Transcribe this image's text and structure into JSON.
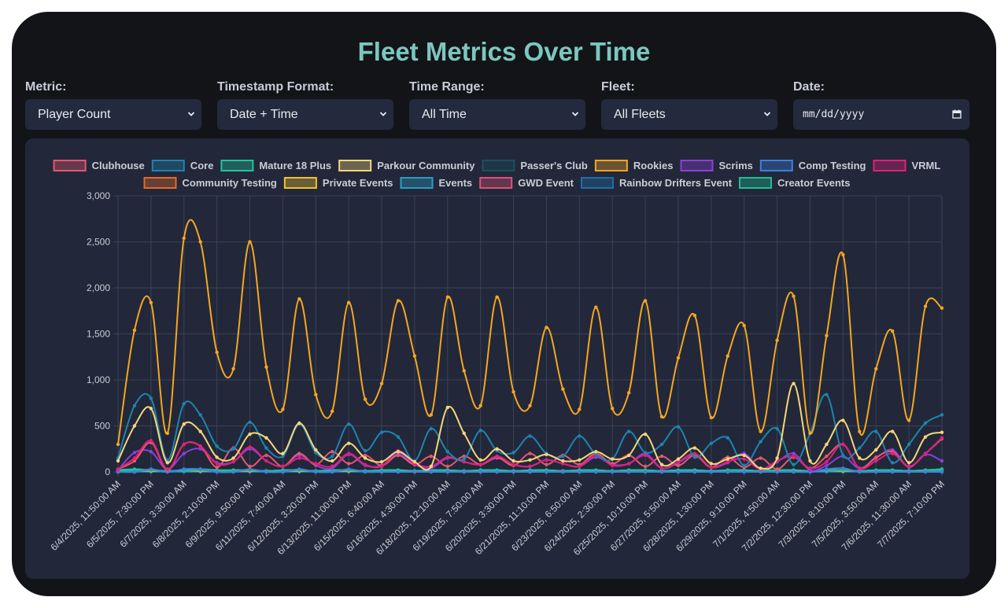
{
  "title": "Fleet Metrics Over Time",
  "controls": [
    {
      "label": "Metric:",
      "value": "Player Count"
    },
    {
      "label": "Timestamp Format:",
      "value": "Date + Time"
    },
    {
      "label": "Time Range:",
      "value": "All Time"
    },
    {
      "label": "Fleet:",
      "value": "All Fleets"
    },
    {
      "label": "Date:",
      "value": "mm/dd/yyyy"
    }
  ],
  "icons": {
    "select_arrow": "chevron-down-icon",
    "date_picker": "calendar-icon"
  },
  "colors": {
    "page": "#121418",
    "panel": "#222839",
    "title": "#7cc7bf",
    "grid": "#3a4256",
    "tick": "#c9cdd6"
  },
  "chart_data": {
    "type": "line",
    "title": "",
    "xlabel": "",
    "ylabel": "",
    "ylim": [
      0,
      3000
    ],
    "yticks": [
      0,
      500,
      1000,
      1500,
      2000,
      2500,
      3000
    ],
    "ytick_labels": [
      "0",
      "500",
      "1,000",
      "1,500",
      "2,000",
      "2,500",
      "3,000"
    ],
    "xtick_labels": [
      "6/4/2025, 11:50:00 AM",
      "6/5/2025, 7:30:00 PM",
      "6/7/2025, 3:30:00 AM",
      "6/8/2025, 2:10:00 PM",
      "6/9/2025, 9:50:00 PM",
      "6/11/2025, 7:40:00 AM",
      "6/12/2025, 3:20:00 PM",
      "6/13/2025, 11:00:00 PM",
      "6/15/2025, 6:40:00 AM",
      "6/16/2025, 4:30:00 PM",
      "6/18/2025, 12:10:00 AM",
      "6/19/2025, 7:50:00 AM",
      "6/20/2025, 3:30:00 PM",
      "6/21/2025, 11:10:00 PM",
      "6/23/2025, 6:50:00 AM",
      "6/24/2025, 2:30:00 PM",
      "6/25/2025, 10:10:00 PM",
      "6/27/2025, 5:50:00 AM",
      "6/28/2025, 1:30:00 PM",
      "6/29/2025, 9:10:00 PM",
      "7/1/2025, 4:50:00 AM",
      "7/2/2025, 12:30:00 PM",
      "7/3/2025, 8:10:00 PM",
      "7/5/2025, 3:50:00 AM",
      "7/6/2025, 11:30:00 AM",
      "7/7/2025, 7:10:00 PM"
    ],
    "x": [
      0,
      0.5,
      1,
      1.5,
      2,
      2.5,
      3,
      3.5,
      4,
      4.5,
      5,
      5.5,
      6,
      6.5,
      7,
      7.5,
      8,
      8.5,
      9,
      9.5,
      10,
      10.5,
      11,
      11.5,
      12,
      12.5,
      13,
      13.5,
      14,
      14.5,
      15,
      15.5,
      16,
      16.5,
      17,
      17.5,
      18,
      18.5,
      19,
      19.5,
      20,
      20.5,
      21,
      21.5,
      22,
      22.5,
      23,
      23.5,
      24,
      24.5,
      25
    ],
    "series": [
      {
        "name": "Clubhouse",
        "color": "#e5576f",
        "values": [
          30,
          120,
          320,
          20,
          300,
          280,
          50,
          260,
          60,
          180,
          60,
          200,
          80,
          220,
          90,
          180,
          70,
          180,
          80,
          170,
          60,
          170,
          80,
          160,
          70,
          200,
          80,
          180,
          80,
          200,
          90,
          180,
          60,
          170,
          70,
          180,
          50,
          160,
          50,
          150,
          30,
          160,
          40,
          170,
          300,
          40,
          160,
          220,
          60,
          200,
          360
        ]
      },
      {
        "name": "Core",
        "color": "#1f83b0",
        "values": [
          150,
          720,
          800,
          130,
          740,
          620,
          280,
          250,
          540,
          260,
          170,
          520,
          210,
          170,
          520,
          230,
          430,
          380,
          120,
          470,
          220,
          140,
          450,
          230,
          210,
          390,
          200,
          170,
          390,
          190,
          140,
          440,
          210,
          300,
          490,
          160,
          310,
          370,
          70,
          330,
          470,
          80,
          420,
          840,
          180,
          260,
          440,
          100,
          300,
          530,
          620
        ]
      },
      {
        "name": "Mature 18 Plus",
        "color": "#22c49b",
        "values": [
          20,
          30,
          20,
          10,
          20,
          30,
          20,
          20,
          20,
          10,
          20,
          20,
          10,
          20,
          20,
          10,
          20,
          20,
          10,
          20,
          20,
          10,
          20,
          20,
          10,
          20,
          20,
          10,
          20,
          20,
          10,
          20,
          20,
          10,
          20,
          20,
          10,
          20,
          20,
          10,
          20,
          20,
          10,
          20,
          20,
          10,
          20,
          20,
          10,
          20,
          30
        ]
      },
      {
        "name": "Parkour Community",
        "color": "#f5d67a",
        "values": [
          120,
          500,
          690,
          100,
          520,
          440,
          160,
          150,
          410,
          370,
          200,
          530,
          240,
          120,
          310,
          150,
          110,
          220,
          110,
          60,
          700,
          420,
          130,
          250,
          120,
          130,
          190,
          120,
          130,
          220,
          140,
          180,
          410,
          80,
          140,
          260,
          90,
          140,
          180,
          40,
          150,
          960,
          120,
          300,
          560,
          150,
          240,
          440,
          100,
          380,
          430
        ]
      },
      {
        "name": "Passer's Club",
        "color": "#1b4f5e",
        "values": [
          10,
          10,
          10,
          10,
          10,
          10,
          10,
          10,
          10,
          10,
          10,
          10,
          10,
          10,
          10,
          10,
          10,
          10,
          10,
          10,
          10,
          10,
          10,
          10,
          10,
          10,
          10,
          10,
          10,
          10,
          10,
          10,
          10,
          10,
          10,
          10,
          10,
          10,
          10,
          10,
          10,
          10,
          10,
          10,
          10,
          10,
          10,
          10,
          10,
          10,
          10
        ]
      },
      {
        "name": "Rookies",
        "color": "#f5a623",
        "values": [
          300,
          1540,
          1840,
          420,
          2540,
          2500,
          1300,
          1120,
          2500,
          1140,
          680,
          1880,
          840,
          660,
          1840,
          790,
          960,
          1860,
          1260,
          620,
          1900,
          1100,
          720,
          1900,
          870,
          720,
          1570,
          900,
          680,
          1790,
          690,
          860,
          1860,
          600,
          1240,
          1700,
          590,
          1260,
          1590,
          440,
          1430,
          1910,
          420,
          1480,
          2360,
          440,
          1120,
          1530,
          560,
          1800,
          1780
        ]
      },
      {
        "name": "Scrims",
        "color": "#8b3fd9",
        "values": [
          20,
          210,
          220,
          30,
          200,
          250,
          100,
          110,
          250,
          120,
          60,
          180,
          70,
          40,
          190,
          70,
          70,
          200,
          80,
          40,
          150,
          110,
          80,
          150,
          80,
          60,
          130,
          90,
          60,
          160,
          80,
          90,
          200,
          40,
          100,
          190,
          50,
          100,
          200,
          30,
          110,
          200,
          20,
          70,
          170,
          40,
          150,
          240,
          50,
          190,
          120
        ]
      },
      {
        "name": "Comp Testing",
        "color": "#3f7fe0",
        "values": [
          0,
          0,
          30,
          0,
          30,
          30,
          0,
          0,
          30,
          0,
          0,
          30,
          0,
          0,
          30,
          0,
          0,
          0,
          0,
          0,
          0,
          0,
          0,
          0,
          0,
          0,
          0,
          0,
          0,
          0,
          0,
          0,
          0,
          0,
          0,
          0,
          0,
          0,
          0,
          0,
          0,
          0,
          0,
          30,
          40,
          0,
          0,
          0,
          0,
          0,
          0
        ]
      },
      {
        "name": "VRML",
        "color": "#e0207c",
        "values": [
          30,
          150,
          340,
          30,
          300,
          280,
          90,
          110,
          270,
          120,
          60,
          150,
          90,
          60,
          200,
          80,
          60,
          230,
          90,
          60,
          160,
          110,
          80,
          170,
          80,
          60,
          130,
          90,
          60,
          180,
          70,
          90,
          180,
          40,
          110,
          200,
          50,
          110,
          140,
          30,
          120,
          170,
          40,
          110,
          300,
          40,
          120,
          200,
          60,
          200,
          370
        ]
      },
      {
        "name": "Community Testing",
        "color": "#e8692b",
        "values": [
          0,
          0,
          0,
          0,
          0,
          0,
          0,
          0,
          0,
          0,
          0,
          0,
          0,
          0,
          0,
          0,
          0,
          0,
          0,
          0,
          0,
          0,
          0,
          0,
          0,
          0,
          0,
          0,
          0,
          0,
          0,
          0,
          0,
          0,
          0,
          0,
          0,
          0,
          0,
          0,
          0,
          0,
          0,
          0,
          0,
          0,
          0,
          0,
          0,
          0,
          0
        ]
      },
      {
        "name": "Private Events",
        "color": "#f2c230",
        "values": [
          10,
          10,
          10,
          10,
          10,
          10,
          10,
          10,
          10,
          10,
          10,
          10,
          10,
          10,
          10,
          10,
          10,
          10,
          10,
          10,
          10,
          10,
          10,
          10,
          10,
          10,
          10,
          10,
          10,
          10,
          10,
          10,
          10,
          10,
          10,
          10,
          10,
          10,
          10,
          10,
          10,
          10,
          10,
          10,
          10,
          10,
          10,
          10,
          10,
          10,
          10
        ]
      },
      {
        "name": "Events",
        "color": "#2a9ec4",
        "values": [
          10,
          10,
          20,
          10,
          10,
          20,
          10,
          10,
          20,
          10,
          10,
          20,
          10,
          10,
          20,
          10,
          10,
          20,
          10,
          10,
          20,
          10,
          10,
          20,
          10,
          10,
          20,
          10,
          10,
          20,
          10,
          10,
          20,
          10,
          10,
          20,
          10,
          10,
          20,
          10,
          10,
          20,
          10,
          10,
          20,
          10,
          10,
          20,
          10,
          10,
          20
        ]
      },
      {
        "name": "GWD Event",
        "color": "#e0507a",
        "values": [
          0,
          0,
          0,
          0,
          0,
          0,
          0,
          0,
          0,
          0,
          0,
          0,
          0,
          0,
          0,
          0,
          0,
          0,
          0,
          0,
          0,
          0,
          0,
          0,
          0,
          0,
          0,
          0,
          0,
          0,
          0,
          0,
          0,
          0,
          0,
          0,
          0,
          0,
          0,
          0,
          0,
          0,
          0,
          0,
          0,
          0,
          0,
          0,
          0,
          0,
          0
        ]
      },
      {
        "name": "Rainbow Drifters Event",
        "color": "#1f6fa8",
        "values": [
          0,
          0,
          0,
          0,
          0,
          0,
          0,
          0,
          0,
          0,
          0,
          0,
          0,
          0,
          0,
          0,
          0,
          0,
          0,
          0,
          0,
          0,
          0,
          0,
          0,
          0,
          0,
          0,
          0,
          0,
          0,
          0,
          0,
          0,
          0,
          0,
          0,
          0,
          0,
          0,
          0,
          0,
          0,
          0,
          0,
          0,
          0,
          0,
          0,
          0,
          0
        ]
      },
      {
        "name": "Creator Events",
        "color": "#1fbf96",
        "values": [
          10,
          20,
          20,
          10,
          20,
          20,
          10,
          20,
          20,
          10,
          20,
          20,
          10,
          20,
          20,
          10,
          20,
          20,
          10,
          20,
          20,
          10,
          20,
          20,
          10,
          20,
          20,
          10,
          20,
          20,
          10,
          20,
          20,
          10,
          20,
          20,
          10,
          20,
          20,
          10,
          20,
          20,
          10,
          20,
          20,
          10,
          20,
          20,
          10,
          20,
          30
        ]
      }
    ]
  }
}
